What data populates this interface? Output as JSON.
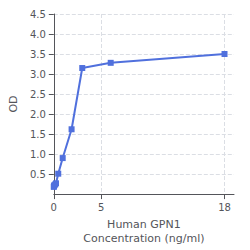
{
  "chart_data": {
    "type": "line",
    "x": [
      0.0,
      0.016,
      0.047,
      0.141,
      0.234,
      0.469,
      0.938,
      1.875,
      3.0,
      6.0,
      18.0
    ],
    "values": [
      0.18,
      0.2,
      0.22,
      0.24,
      0.27,
      0.51,
      0.9,
      1.62,
      3.15,
      3.28,
      3.5
    ],
    "marker": "square",
    "xlabel": "Human GPN1\nConcentration (ng/ml)",
    "ylabel": "OD",
    "xlim": [
      0,
      19
    ],
    "ylim": [
      0,
      4.5
    ],
    "xticks": [
      0,
      5,
      18
    ],
    "yticks": [
      0.5,
      {
        "value": 1.0,
        "label": "1.0"
      },
      1.5,
      {
        "value": 2.0,
        "label": "2.0"
      },
      2.5,
      {
        "value": 3.0,
        "label": "3.0"
      },
      3.5,
      {
        "value": 4.0,
        "label": "4.0"
      },
      4.5
    ],
    "grid": true
  }
}
